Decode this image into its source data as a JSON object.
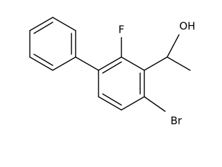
{
  "atoms": {
    "fluorine": "F",
    "hydroxyl": "OH",
    "bromine": "Br"
  }
}
